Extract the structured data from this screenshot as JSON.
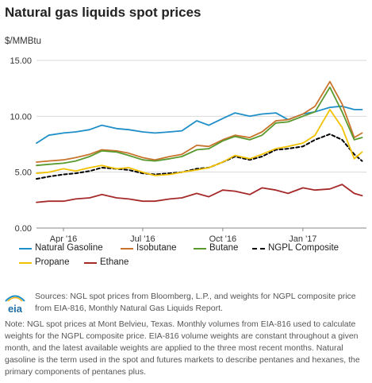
{
  "title": "Natural gas liquids spot prices",
  "unit_label": "$/MMBtu",
  "chart_data": {
    "type": "line",
    "title": "Natural gas liquids spot prices",
    "ylabel": "$/MMBtu",
    "ylim": [
      0,
      15
    ],
    "yticks": [
      "15.00",
      "10.00",
      "5.00",
      "0.00"
    ],
    "ytick_values": [
      15,
      10,
      5,
      0
    ],
    "xticks": [
      "Apr '16",
      "Jul '16",
      "Oct '16",
      "Jan '17"
    ],
    "xtick_dates": [
      "2016-04-01",
      "2016-07-01",
      "2016-10-01",
      "2017-01-01"
    ],
    "xlim": [
      "2016-03-01",
      "2017-03-15"
    ],
    "x": [
      "2016-03-01",
      "2016-03-15",
      "2016-04-01",
      "2016-04-15",
      "2016-05-01",
      "2016-05-15",
      "2016-06-01",
      "2016-06-15",
      "2016-07-01",
      "2016-07-15",
      "2016-08-01",
      "2016-08-15",
      "2016-09-01",
      "2016-09-15",
      "2016-10-01",
      "2016-10-15",
      "2016-11-01",
      "2016-11-15",
      "2016-12-01",
      "2016-12-15",
      "2017-01-01",
      "2017-01-15",
      "2017-02-01",
      "2017-02-15",
      "2017-03-01",
      "2017-03-10"
    ],
    "series": [
      {
        "name": "Natural Gasoline",
        "color": "#1f8fc8",
        "dash": false,
        "values": [
          7.6,
          8.3,
          8.5,
          8.6,
          8.8,
          9.2,
          8.9,
          8.8,
          8.6,
          8.5,
          8.6,
          8.7,
          9.6,
          9.2,
          9.8,
          10.3,
          10.0,
          10.2,
          10.3,
          9.7,
          10.2,
          10.4,
          10.8,
          10.9,
          10.6,
          10.6
        ]
      },
      {
        "name": "Isobutane",
        "color": "#c8742c",
        "dash": false,
        "values": [
          5.9,
          6.0,
          6.1,
          6.3,
          6.6,
          7.0,
          6.9,
          6.7,
          6.3,
          6.1,
          6.4,
          6.6,
          7.4,
          7.3,
          7.9,
          8.3,
          8.1,
          8.6,
          9.6,
          9.7,
          10.2,
          10.9,
          13.1,
          11.1,
          8.1,
          8.5
        ]
      },
      {
        "name": "Butane",
        "color": "#5a9a2e",
        "dash": false,
        "values": [
          5.6,
          5.7,
          5.8,
          6.0,
          6.4,
          6.9,
          6.8,
          6.5,
          6.1,
          6.0,
          6.2,
          6.4,
          7.0,
          7.1,
          7.8,
          8.2,
          7.9,
          8.3,
          9.4,
          9.5,
          10.0,
          10.4,
          12.6,
          10.4,
          7.9,
          8.1
        ]
      },
      {
        "name": "NGPL Composite",
        "color": "#000000",
        "dash": true,
        "values": [
          4.4,
          4.6,
          4.8,
          4.9,
          5.1,
          5.4,
          5.3,
          5.2,
          4.9,
          4.8,
          4.9,
          5.0,
          5.3,
          5.4,
          5.9,
          6.4,
          6.1,
          6.4,
          7.0,
          7.1,
          7.3,
          7.9,
          8.4,
          7.9,
          6.6,
          6.0
        ]
      },
      {
        "name": "Propane",
        "color": "#f2c200",
        "dash": false,
        "values": [
          4.9,
          5.0,
          5.3,
          5.1,
          5.4,
          5.6,
          5.3,
          5.4,
          5.0,
          4.7,
          4.8,
          5.0,
          5.2,
          5.4,
          5.9,
          6.5,
          6.2,
          6.6,
          7.1,
          7.3,
          7.6,
          8.3,
          10.6,
          9.0,
          6.2,
          6.8
        ]
      },
      {
        "name": "Ethane",
        "color": "#a62a2a",
        "dash": false,
        "values": [
          2.3,
          2.4,
          2.4,
          2.6,
          2.7,
          3.0,
          2.7,
          2.6,
          2.4,
          2.4,
          2.6,
          2.7,
          3.1,
          2.8,
          3.4,
          3.3,
          3.0,
          3.6,
          3.4,
          3.1,
          3.6,
          3.4,
          3.5,
          3.9,
          3.1,
          2.9
        ]
      }
    ],
    "legend_placement": "bottom",
    "grid": "horizontal"
  },
  "legend": [
    {
      "label": "Natural Gasoline",
      "color": "#1f8fc8",
      "dash": false
    },
    {
      "label": "Isobutane",
      "color": "#c8742c",
      "dash": false
    },
    {
      "label": "Butane",
      "color": "#5a9a2e",
      "dash": false
    },
    {
      "label": "NGPL Composite",
      "color": "#000000",
      "dash": true
    },
    {
      "label": "Propane",
      "color": "#f2c200",
      "dash": false
    },
    {
      "label": "Ethane",
      "color": "#a62a2a",
      "dash": false
    }
  ],
  "logo_text": "eia",
  "source": "Sources: NGL spot prices from Bloomberg, L.P., and weights for NGPL composite price from EIA-816, Monthly Natural Gas Liquids Report.",
  "note": "Note: NGL spot prices at Mont Belvieu, Texas. Monthly volumes from EIA-816 used to calculate weights for the NGPL composite price. EIA-816 volume weights are constant throughout a given month, and the latest available weights are applied to the three most recent months. Natural gasoline is the term used in the spot and futures markets to describe pentanes and hexanes, the primary components of pentanes plus."
}
